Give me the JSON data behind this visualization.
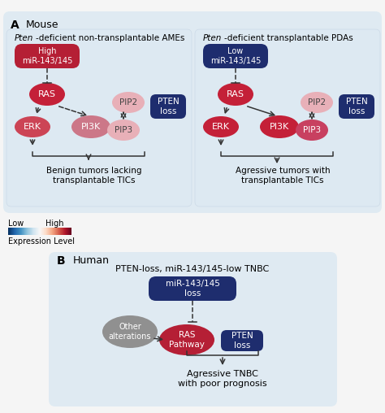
{
  "bg_color": "#f5f5f5",
  "panel_bg": "#dce9f2",
  "title_a": "Mouse",
  "title_b": "Human",
  "label_a": "A",
  "label_b": "B",
  "left_panel_title_italic": "Pten",
  "left_panel_title_rest": "-deficient non-transplantable AMEs",
  "right_panel_title_italic": "Pten",
  "right_panel_title_rest": "-deficient transplantable PDAs",
  "human_panel_title": "PTEN-loss, miR-143/145-low TNBC",
  "left_outcome": "Benign tumors lacking\ntransplantable TICs",
  "right_outcome": "Agressive tumors with\ntransplantable TICs",
  "human_outcome": "Agressive TNBC\nwith poor prognosis",
  "legend_low": "Low",
  "legend_high": "High",
  "legend_label": "Expression Level",
  "color_high_mir": "#b51f35",
  "color_low_mir": "#1e2d6e",
  "color_ras": "#c42038",
  "color_erk_left": "#cc4455",
  "color_erk_right": "#c42038",
  "color_pi3k_left": "#cc7788",
  "color_pi3k_right": "#c42038",
  "color_pip2": "#e8b0b8",
  "color_pip3_left": "#e8b0b8",
  "color_pip3_right": "#c84060",
  "color_pten": "#1e2d6e",
  "color_gray": "#909090",
  "color_ras_pathway": "#b51f35",
  "color_mir_loss": "#1e2d6e",
  "arrow_color": "#333333"
}
